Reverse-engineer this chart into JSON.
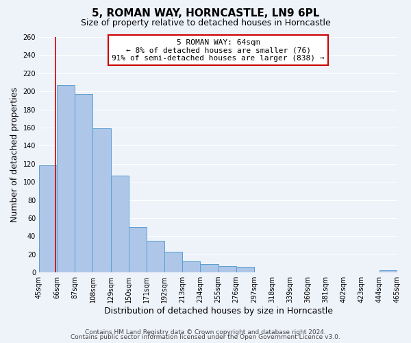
{
  "title": "5, ROMAN WAY, HORNCASTLE, LN9 6PL",
  "subtitle": "Size of property relative to detached houses in Horncastle",
  "xlabel": "Distribution of detached houses by size in Horncastle",
  "ylabel": "Number of detached properties",
  "bar_edges": [
    45,
    66,
    87,
    108,
    129,
    150,
    171,
    192,
    213,
    234,
    255,
    276,
    297,
    318,
    339,
    360,
    381,
    402,
    423,
    444,
    465
  ],
  "bar_heights": [
    118,
    207,
    197,
    159,
    107,
    50,
    35,
    23,
    12,
    9,
    7,
    6,
    0,
    0,
    0,
    0,
    0,
    0,
    0,
    2
  ],
  "bar_color": "#aec6e8",
  "bar_edge_color": "#5a9fd4",
  "marker_x": 64,
  "marker_color": "#cc0000",
  "annotation_title": "5 ROMAN WAY: 64sqm",
  "annotation_line1": "← 8% of detached houses are smaller (76)",
  "annotation_line2": "91% of semi-detached houses are larger (838) →",
  "annotation_box_color": "#ffffff",
  "annotation_box_edge": "#cc0000",
  "ylim": [
    0,
    260
  ],
  "xlim": [
    45,
    465
  ],
  "tick_labels": [
    "45sqm",
    "66sqm",
    "87sqm",
    "108sqm",
    "129sqm",
    "150sqm",
    "171sqm",
    "192sqm",
    "213sqm",
    "234sqm",
    "255sqm",
    "276sqm",
    "297sqm",
    "318sqm",
    "339sqm",
    "360sqm",
    "381sqm",
    "402sqm",
    "423sqm",
    "444sqm",
    "465sqm"
  ],
  "footer1": "Contains HM Land Registry data © Crown copyright and database right 2024.",
  "footer2": "Contains public sector information licensed under the Open Government Licence v3.0.",
  "background_color": "#eef2f9",
  "grid_color": "#ffffff",
  "title_fontsize": 11,
  "subtitle_fontsize": 9,
  "axis_label_fontsize": 9,
  "tick_fontsize": 7,
  "annotation_fontsize": 8,
  "footer_fontsize": 6.5
}
